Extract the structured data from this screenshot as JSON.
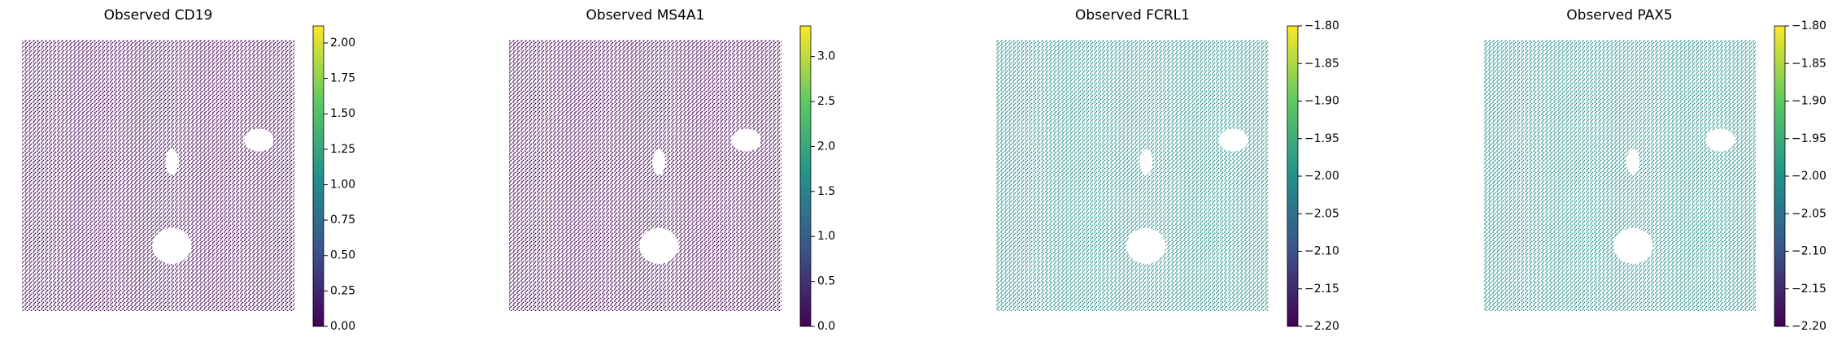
{
  "chart_data": [
    {
      "type": "spatial-scatter",
      "title": "Observed CD19",
      "point_color": "#440154",
      "colormap": [
        "#440154",
        "#3b528b",
        "#21918c",
        "#5ec962",
        "#fde725"
      ],
      "clim": [
        0,
        2.12
      ],
      "cticks": [
        {
          "value": 0,
          "label": "0.00"
        },
        {
          "value": 0.25,
          "label": "0.25"
        },
        {
          "value": 0.5,
          "label": "0.50"
        },
        {
          "value": 0.75,
          "label": "0.75"
        },
        {
          "value": 1,
          "label": "1.00"
        },
        {
          "value": 1.25,
          "label": "1.25"
        },
        {
          "value": 1.5,
          "label": "1.50"
        },
        {
          "value": 1.75,
          "label": "1.75"
        },
        {
          "value": 2,
          "label": "2.00"
        }
      ]
    },
    {
      "type": "spatial-scatter",
      "title": "Observed MS4A1",
      "point_color": "#440154",
      "colormap": [
        "#440154",
        "#3b528b",
        "#21918c",
        "#5ec962",
        "#fde725"
      ],
      "clim": [
        0,
        3.34
      ],
      "cticks": [
        {
          "value": 0,
          "label": "0.0"
        },
        {
          "value": 0.5,
          "label": "0.5"
        },
        {
          "value": 1,
          "label": "1.0"
        },
        {
          "value": 1.5,
          "label": "1.5"
        },
        {
          "value": 2,
          "label": "2.0"
        },
        {
          "value": 2.5,
          "label": "2.5"
        },
        {
          "value": 3,
          "label": "3.0"
        }
      ]
    },
    {
      "type": "spatial-scatter",
      "title": "Observed FCRL1",
      "point_color": "#21918c",
      "colormap": [
        "#440154",
        "#3b528b",
        "#21918c",
        "#5ec962",
        "#fde725"
      ],
      "clim": [
        -2.2,
        -1.8
      ],
      "cticks": [
        {
          "value": -2.2,
          "label": "−2.20"
        },
        {
          "value": -2.15,
          "label": "−2.15"
        },
        {
          "value": -2.1,
          "label": "−2.10"
        },
        {
          "value": -2.05,
          "label": "−2.05"
        },
        {
          "value": -2,
          "label": "−2.00"
        },
        {
          "value": -1.95,
          "label": "−1.95"
        },
        {
          "value": -1.9,
          "label": "−1.90"
        },
        {
          "value": -1.85,
          "label": "−1.85"
        },
        {
          "value": -1.8,
          "label": "−1.80"
        }
      ]
    },
    {
      "type": "spatial-scatter",
      "title": "Observed PAX5",
      "point_color": "#21918c",
      "colormap": [
        "#440154",
        "#3b528b",
        "#21918c",
        "#5ec962",
        "#fde725"
      ],
      "clim": [
        -2.2,
        -1.8
      ],
      "cticks": [
        {
          "value": -2.2,
          "label": "−2.20"
        },
        {
          "value": -2.15,
          "label": "−2.15"
        },
        {
          "value": -2.1,
          "label": "−2.10"
        },
        {
          "value": -2.05,
          "label": "−2.05"
        },
        {
          "value": -2,
          "label": "−2.00"
        },
        {
          "value": -1.95,
          "label": "−1.95"
        },
        {
          "value": -1.9,
          "label": "−1.90"
        },
        {
          "value": -1.85,
          "label": "−1.85"
        },
        {
          "value": -1.8,
          "label": "−1.80"
        }
      ]
    }
  ]
}
